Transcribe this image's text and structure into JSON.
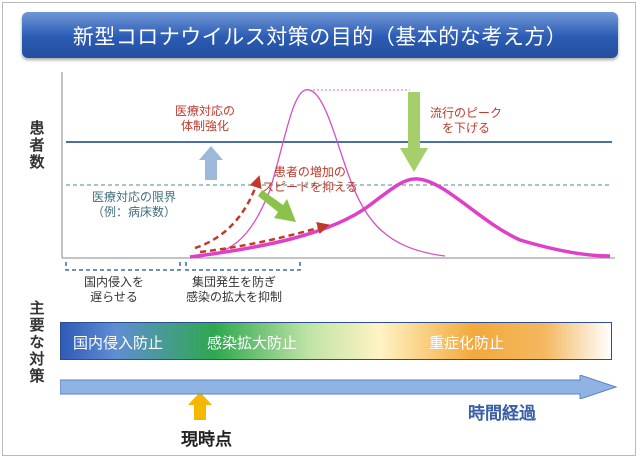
{
  "title": "新型コロナウイルス対策の目的（基本的な考え方）",
  "y_axis_label": [
    "患",
    "者",
    "数"
  ],
  "policy_axis_label": [
    "主",
    "要",
    "な",
    "対",
    "策"
  ],
  "annotations": {
    "medical_strengthen": [
      "医療対応の",
      "体制強化"
    ],
    "medical_limit": [
      "医療対応の限界",
      "（例：病床数）"
    ],
    "slow_increase": [
      "患者の増加の",
      "スピードを抑える"
    ],
    "lower_peak": [
      "流行のピーク",
      "を下げる"
    ],
    "delay_entry": [
      "国内侵入を",
      "遅らせる"
    ],
    "prevent_clusters": [
      "集団発生を防ぎ",
      "感染の拡大を抑制"
    ]
  },
  "phases": [
    "国内侵入防止",
    "感染拡大防止",
    "重症化防止"
  ],
  "time_label": "時間経過",
  "now_label": "現時点",
  "colors": {
    "title_bg": "#2b5bb4",
    "capacity_line": "#4a6fa5",
    "limit_line": "#4f8a8f",
    "curve": "#e040c8",
    "red_arrow": "#c0392b",
    "green_arrow": "#8bc34a",
    "blue_arrow": "#9db9d9",
    "now_arrow": "#f5b800",
    "time_arrow": "#7fa6da"
  }
}
